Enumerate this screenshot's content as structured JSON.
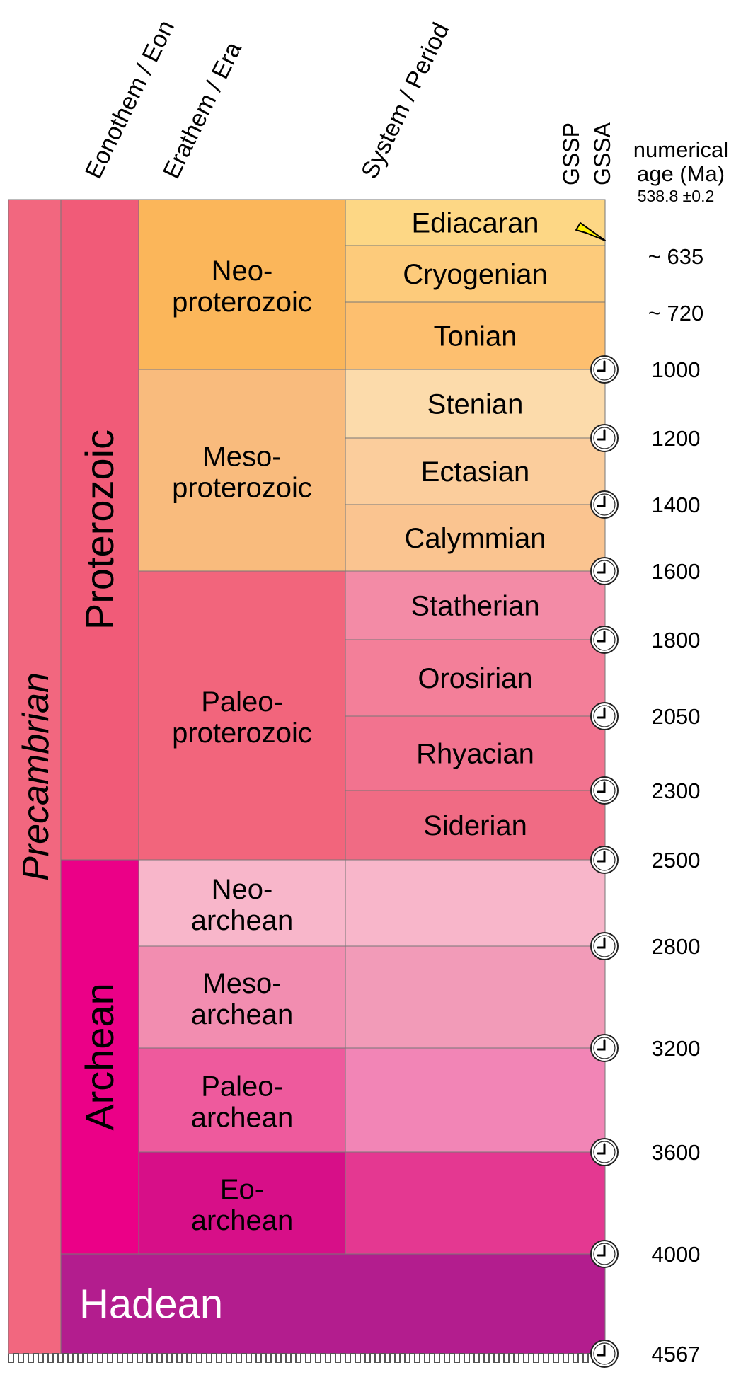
{
  "headers": {
    "eon": "Eonothem / Eon",
    "era": "Erathem / Era",
    "period": "System / Period",
    "gssp": "GSSP",
    "gssa": "GSSA",
    "age_line1": "numerical",
    "age_line2": "age (Ma)"
  },
  "supereon": {
    "label": "Precambrian",
    "color": "#f2677f"
  },
  "eons": [
    {
      "label": "Proterozoic",
      "color": "#f15b78",
      "from": "538.8",
      "to": "2500"
    },
    {
      "label": "Archean",
      "color": "#eb0087",
      "from": "2500",
      "to": "4000"
    },
    {
      "label": "Hadean",
      "color": "#b31d8e",
      "from": "4000",
      "to": "4567"
    }
  ],
  "eras": [
    {
      "line1": "Neo-",
      "line2": "proterozoic",
      "color": "#fbb65a"
    },
    {
      "line1": "Meso-",
      "line2": "proterozoic",
      "color": "#f9bb7d"
    },
    {
      "line1": "Paleo-",
      "line2": "proterozoic",
      "color": "#f2657c"
    },
    {
      "line1": "Neo-",
      "line2": "archean",
      "color": "#f8b6ca"
    },
    {
      "line1": "Meso-",
      "line2": "archean",
      "color": "#f28db0"
    },
    {
      "line1": "Paleo-",
      "line2": "archean",
      "color": "#ee5a9d"
    },
    {
      "line1": "Eo-",
      "line2": "archean",
      "color": "#d70f88"
    }
  ],
  "periods": [
    {
      "label": "Ediacaran",
      "color": "#fdd785"
    },
    {
      "label": "Cryogenian",
      "color": "#fdcb7b"
    },
    {
      "label": "Tonian",
      "color": "#fdbf6f"
    },
    {
      "label": "Stenian",
      "color": "#fcdbab"
    },
    {
      "label": "Ectasian",
      "color": "#fbcd9c"
    },
    {
      "label": "Calymmian",
      "color": "#fac490"
    },
    {
      "label": "Statherian",
      "color": "#f38ba6"
    },
    {
      "label": "Orosirian",
      "color": "#f37f99"
    },
    {
      "label": "Rhyacian",
      "color": "#f2738f"
    },
    {
      "label": "Siderian",
      "color": "#f06b84"
    },
    {
      "label": "",
      "color": "#f8b6ca"
    },
    {
      "label": "",
      "color": "#f29bb8"
    },
    {
      "label": "",
      "color": "#f285b6"
    },
    {
      "label": "",
      "color": "#e43891"
    }
  ],
  "boundaries": [
    {
      "age": "538.8 ±0.2",
      "marker": "none"
    },
    {
      "age": "~ 635",
      "marker": "gssp"
    },
    {
      "age": "~ 720",
      "marker": "none"
    },
    {
      "age": "1000",
      "marker": "gssa"
    },
    {
      "age": "1200",
      "marker": "gssa"
    },
    {
      "age": "1400",
      "marker": "gssa"
    },
    {
      "age": "1600",
      "marker": "gssa"
    },
    {
      "age": "1800",
      "marker": "gssa"
    },
    {
      "age": "2050",
      "marker": "gssa"
    },
    {
      "age": "2300",
      "marker": "gssa"
    },
    {
      "age": "2500",
      "marker": "gssa"
    },
    {
      "age": "2800",
      "marker": "gssa"
    },
    {
      "age": "3200",
      "marker": "gssa"
    },
    {
      "age": "3600",
      "marker": "gssa"
    },
    {
      "age": "4000",
      "marker": "gssa"
    },
    {
      "age": "4567",
      "marker": "gssa"
    }
  ],
  "colors": {
    "gssp_spike": "#fff200",
    "line": "#777777"
  }
}
